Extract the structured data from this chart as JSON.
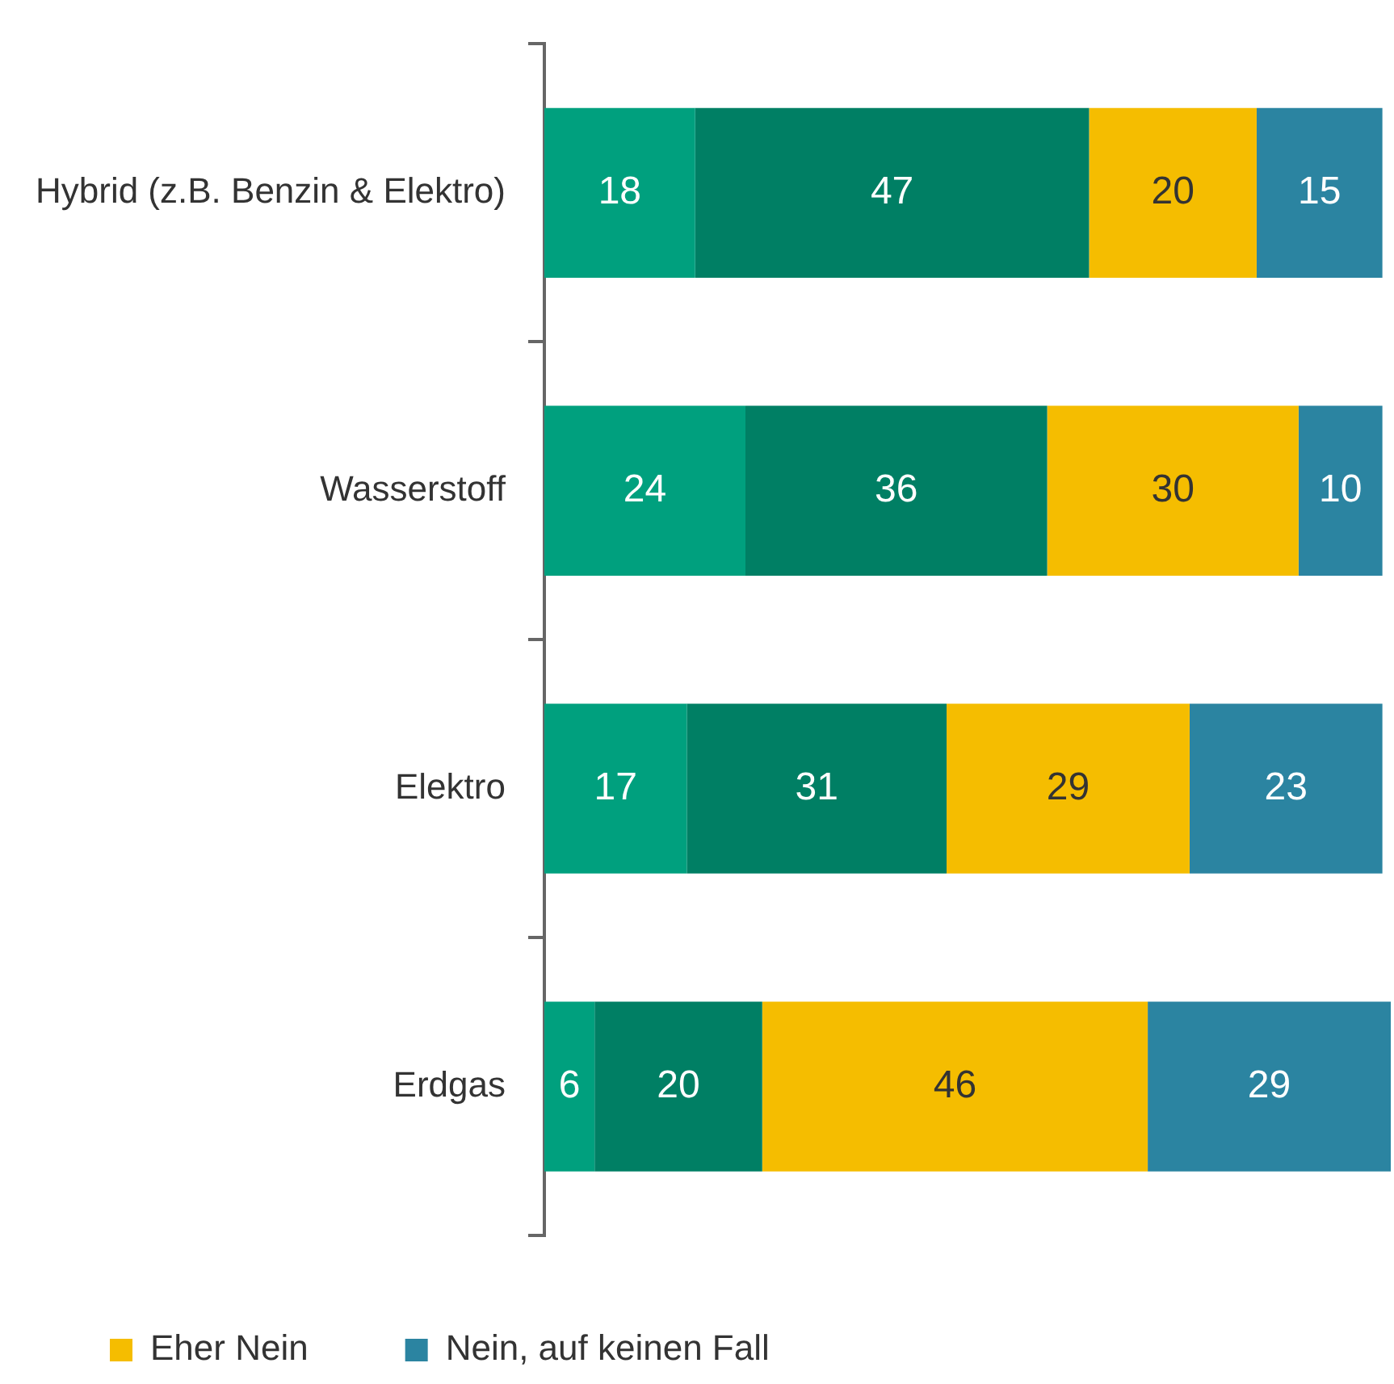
{
  "chart_data": {
    "type": "bar",
    "orientation": "horizontal",
    "stacked": true,
    "data_labels": true,
    "legend": "bottom left",
    "categories": [
      "Hybrid (z.B. Benzin & Elektro)",
      "Wasserstoff",
      "Elektro",
      "Erdgas"
    ],
    "series": [
      {
        "color": "#00a07e",
        "values": [
          18,
          24,
          17,
          6
        ]
      },
      {
        "color": "#007f64",
        "values": [
          47,
          36,
          31,
          20
        ]
      },
      {
        "name": "Eher Nein",
        "color": "#f5bd00",
        "values": [
          20,
          30,
          29,
          46
        ]
      },
      {
        "name": "Nein, auf keinen Fall",
        "color": "#2b84a1",
        "values": [
          15,
          10,
          23,
          29
        ]
      }
    ]
  }
}
